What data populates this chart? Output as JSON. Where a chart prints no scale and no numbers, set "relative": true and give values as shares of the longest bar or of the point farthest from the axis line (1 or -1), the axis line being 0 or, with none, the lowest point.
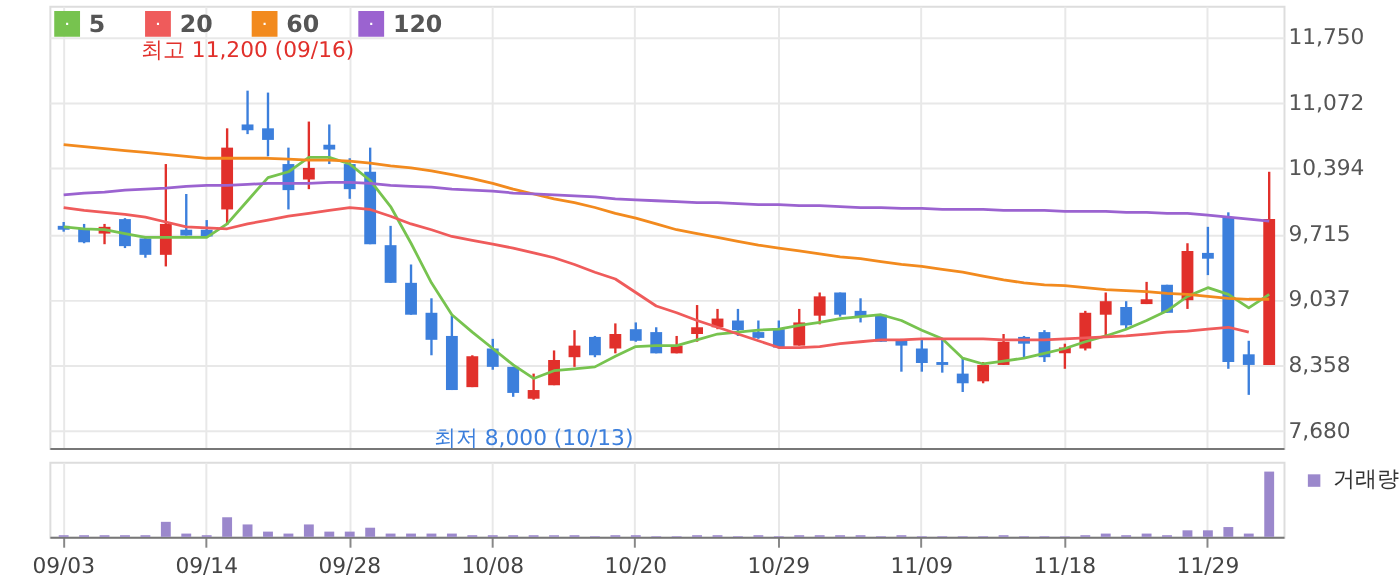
{
  "chart_data": [
    {
      "type": "candlestick",
      "categories": [
        null,
        null,
        null,
        null,
        null,
        null,
        null,
        null,
        null,
        null,
        null,
        null,
        null,
        null,
        null,
        null,
        null,
        null,
        null,
        null,
        null,
        null,
        null,
        null,
        null,
        null,
        null,
        null,
        null,
        null,
        null,
        null,
        null,
        null,
        null,
        null,
        null,
        null,
        null,
        null,
        null,
        null,
        null,
        null,
        null,
        null,
        null,
        null,
        null,
        null,
        null,
        null,
        null,
        null,
        null,
        null,
        null,
        null,
        null,
        null
      ],
      "ohlc": [
        [
          9800,
          9840,
          9740,
          9760
        ],
        [
          9770,
          9820,
          9620,
          9630
        ],
        [
          9720,
          9820,
          9610,
          9790
        ],
        [
          9870,
          9880,
          9570,
          9590
        ],
        [
          9670,
          9690,
          9470,
          9500
        ],
        [
          9500,
          10440,
          9380,
          9820
        ],
        [
          9760,
          10130,
          9700,
          9700
        ],
        [
          9760,
          9860,
          9680,
          9690
        ],
        [
          9970,
          10810,
          9810,
          10610
        ],
        [
          10850,
          11200,
          10750,
          10790
        ],
        [
          10810,
          11180,
          10520,
          10690
        ],
        [
          10440,
          10610,
          9970,
          10170
        ],
        [
          10280,
          10880,
          10180,
          10400
        ],
        [
          10640,
          10850,
          10440,
          10590
        ],
        [
          10440,
          10500,
          10080,
          10180
        ],
        [
          10360,
          10610,
          9610,
          9610
        ],
        [
          9600,
          9800,
          9210,
          9210
        ],
        [
          9210,
          9400,
          8880,
          8880
        ],
        [
          8900,
          9050,
          8460,
          8620
        ],
        [
          8660,
          8870,
          8100,
          8100
        ],
        [
          8130,
          8460,
          8130,
          8450
        ],
        [
          8530,
          8630,
          8310,
          8340
        ],
        [
          8340,
          8340,
          8030,
          8070
        ],
        [
          8010,
          8270,
          8000,
          8100
        ],
        [
          8150,
          8510,
          8150,
          8410
        ],
        [
          8440,
          8720,
          8340,
          8560
        ],
        [
          8650,
          8660,
          8440,
          8460
        ],
        [
          8530,
          8790,
          8480,
          8680
        ],
        [
          8730,
          8800,
          8600,
          8610
        ],
        [
          8700,
          8750,
          8480,
          8480
        ],
        [
          8480,
          8660,
          8480,
          8560
        ],
        [
          8680,
          8980,
          8600,
          8750
        ],
        [
          8750,
          8940,
          8730,
          8840
        ],
        [
          8820,
          8940,
          8660,
          8720
        ],
        [
          8700,
          8820,
          8630,
          8640
        ],
        [
          8730,
          8820,
          8530,
          8540
        ],
        [
          8560,
          8940,
          8560,
          8800
        ],
        [
          8870,
          9110,
          8780,
          9070
        ],
        [
          9110,
          9110,
          8860,
          8880
        ],
        [
          8920,
          9050,
          8800,
          8860
        ],
        [
          8880,
          8880,
          8600,
          8600
        ],
        [
          8620,
          8630,
          8290,
          8560
        ],
        [
          8530,
          8630,
          8290,
          8380
        ],
        [
          8390,
          8630,
          8280,
          8360
        ],
        [
          8270,
          8430,
          8080,
          8170
        ],
        [
          8190,
          8390,
          8170,
          8360
        ],
        [
          8360,
          8680,
          8360,
          8600
        ],
        [
          8650,
          8660,
          8430,
          8580
        ],
        [
          8700,
          8720,
          8390,
          8440
        ],
        [
          8480,
          8580,
          8320,
          8540
        ],
        [
          8530,
          8920,
          8510,
          8900
        ],
        [
          8880,
          9110,
          8660,
          9020
        ],
        [
          8960,
          9020,
          8730,
          8770
        ],
        [
          8990,
          9220,
          8990,
          9040
        ],
        [
          9190,
          9190,
          8900,
          8900
        ],
        [
          9030,
          9620,
          8940,
          9540
        ],
        [
          9520,
          9790,
          9290,
          9460
        ],
        [
          9890,
          9940,
          8320,
          8390
        ],
        [
          8470,
          8610,
          8050,
          8360
        ],
        [
          8360,
          10360,
          8360,
          9870
        ]
      ],
      "colors": [
        "#3c7fdc",
        "#3c7fdc",
        "#e1302b",
        "#3c7fdc",
        "#3c7fdc",
        "#e1302b",
        "#3c7fdc",
        "#3c7fdc",
        "#e1302b",
        "#3c7fdc",
        "#3c7fdc",
        "#3c7fdc",
        "#e1302b",
        "#3c7fdc",
        "#3c7fdc",
        "#3c7fdc",
        "#3c7fdc",
        "#3c7fdc",
        "#3c7fdc",
        "#3c7fdc",
        "#e1302b",
        "#3c7fdc",
        "#3c7fdc",
        "#e1302b",
        "#e1302b",
        "#e1302b",
        "#3c7fdc",
        "#e1302b",
        "#3c7fdc",
        "#3c7fdc",
        "#e1302b",
        "#e1302b",
        "#e1302b",
        "#3c7fdc",
        "#3c7fdc",
        "#3c7fdc",
        "#e1302b",
        "#e1302b",
        "#3c7fdc",
        "#3c7fdc",
        "#3c7fdc",
        "#3c7fdc",
        "#3c7fdc",
        "#3c7fdc",
        "#3c7fdc",
        "#e1302b",
        "#e1302b",
        "#3c7fdc",
        "#3c7fdc",
        "#e1302b",
        "#e1302b",
        "#e1302b",
        "#3c7fdc",
        "#e1302b",
        "#3c7fdc",
        "#e1302b",
        "#3c7fdc",
        "#3c7fdc",
        "#3c7fdc",
        "#e1302b"
      ],
      "series": [
        {
          "name": "5",
          "type": "line",
          "color": "#77c34f",
          "values": [
            9790,
            9770,
            9760,
            9720,
            9680,
            9680,
            9680,
            9680,
            9820,
            10060,
            10300,
            10360,
            10510,
            10510,
            10440,
            10270,
            10000,
            9620,
            9210,
            8880,
            8700,
            8530,
            8360,
            8220,
            8300,
            8320,
            8340,
            8450,
            8550,
            8560,
            8560,
            8620,
            8680,
            8700,
            8720,
            8730,
            8770,
            8800,
            8840,
            8860,
            8880,
            8820,
            8720,
            8630,
            8430,
            8370,
            8400,
            8430,
            8480,
            8530,
            8600,
            8660,
            8730,
            8820,
            8920,
            9070,
            9160,
            9090,
            8950,
            9090
          ]
        },
        {
          "name": "20",
          "type": "line",
          "color": "#ef5b5b",
          "values": [
            9990,
            9960,
            9940,
            9920,
            9890,
            9840,
            9790,
            9780,
            9770,
            9820,
            9860,
            9900,
            9930,
            9960,
            9990,
            9970,
            9900,
            9820,
            9760,
            9690,
            9650,
            9610,
            9570,
            9520,
            9470,
            9400,
            9320,
            9250,
            9110,
            8970,
            8900,
            8820,
            8750,
            8680,
            8610,
            8540,
            8540,
            8550,
            8580,
            8600,
            8620,
            8620,
            8630,
            8630,
            8630,
            8630,
            8620,
            8620,
            8620,
            8630,
            8640,
            8650,
            8660,
            8680,
            8700,
            8710,
            8730,
            8750,
            8700,
            null
          ]
        },
        {
          "name": "60",
          "type": "line",
          "color": "#f28a1e",
          "values": [
            10640,
            10620,
            10600,
            10580,
            10560,
            10540,
            10520,
            10500,
            10500,
            10500,
            10500,
            10490,
            10480,
            10480,
            10470,
            10450,
            10420,
            10400,
            10370,
            10330,
            10290,
            10240,
            10180,
            10130,
            10080,
            10040,
            9990,
            9930,
            9880,
            9820,
            9760,
            9720,
            9680,
            9640,
            9600,
            9570,
            9540,
            9510,
            9480,
            9460,
            9430,
            9400,
            9380,
            9350,
            9320,
            9280,
            9240,
            9210,
            9190,
            9180,
            9160,
            9140,
            9130,
            9120,
            9100,
            9090,
            9070,
            9050,
            9040,
            9040
          ]
        },
        {
          "name": "120",
          "type": "line",
          "color": "#9b63d0",
          "values": [
            10120,
            10140,
            10150,
            10170,
            10180,
            10190,
            10210,
            10220,
            10220,
            10230,
            10240,
            10240,
            10240,
            10250,
            10250,
            10240,
            10220,
            10210,
            10200,
            10180,
            10170,
            10160,
            10140,
            10130,
            10120,
            10110,
            10100,
            10080,
            10070,
            10060,
            10050,
            10040,
            10040,
            10030,
            10020,
            10020,
            10010,
            10010,
            10000,
            9990,
            9990,
            9980,
            9980,
            9970,
            9970,
            9970,
            9960,
            9960,
            9960,
            9950,
            9950,
            9950,
            9940,
            9940,
            9930,
            9930,
            9910,
            9890,
            9870,
            9850
          ]
        }
      ],
      "ylim": [
        7500,
        12080
      ],
      "yticks": [
        {
          "value": 7680,
          "label": "7,680"
        },
        {
          "value": 8358,
          "label": "8,358"
        },
        {
          "value": 9037,
          "label": "9,037"
        },
        {
          "value": 9715,
          "label": "9,715"
        },
        {
          "value": 10394,
          "label": "10,394"
        },
        {
          "value": 11072,
          "label": "11,072"
        },
        {
          "value": 11750,
          "label": "11,750"
        }
      ],
      "annotations": [
        "최고 11,200 (09/16)",
        "최저 8,000 (10/13)"
      ],
      "grid": true,
      "legend": "top left",
      "tick_labels": "y"
    },
    {
      "type": "bar",
      "relative": true,
      "categories": [
        "09/03",
        null,
        null,
        null,
        null,
        null,
        null,
        "09/14",
        null,
        null,
        null,
        null,
        null,
        null,
        "09/28",
        null,
        null,
        null,
        null,
        null,
        null,
        "10/08",
        null,
        null,
        null,
        null,
        null,
        null,
        "10/20",
        null,
        null,
        null,
        null,
        null,
        null,
        "10/29",
        null,
        null,
        null,
        null,
        null,
        null,
        "11/09",
        null,
        null,
        null,
        null,
        null,
        null,
        "11/18",
        null,
        null,
        null,
        null,
        null,
        null,
        "11/29",
        null,
        null,
        null
      ],
      "series": [
        {
          "name": "거래량",
          "color": "#9b88cc",
          "values": [
            0.025,
            0.025,
            0.025,
            0.025,
            0.025,
            0.23,
            0.05,
            0.025,
            0.3,
            0.19,
            0.08,
            0.05,
            0.19,
            0.08,
            0.08,
            0.14,
            0.05,
            0.05,
            0.05,
            0.05,
            0.025,
            0.025,
            0.025,
            0.025,
            0.025,
            0.025,
            0.01,
            0.025,
            0.025,
            0.01,
            0.01,
            0.025,
            0.025,
            0.01,
            0.025,
            0.01,
            0.025,
            0.025,
            0.025,
            0.025,
            0.01,
            0.025,
            0.01,
            0.01,
            0.01,
            0.01,
            0.025,
            0.01,
            0.01,
            0.01,
            0.025,
            0.05,
            0.025,
            0.05,
            0.025,
            0.1,
            0.1,
            0.15,
            0.05,
            1
          ]
        }
      ],
      "grid": "x",
      "legend": "top right",
      "tick_labels": "x"
    }
  ]
}
